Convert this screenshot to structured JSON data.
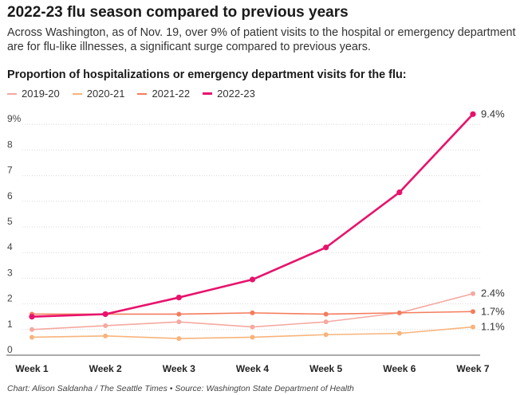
{
  "header": {
    "title": "2022-23 flu season compared to previous years",
    "subtitle": "Across Washington, as of Nov. 19, over 9% of patient visits to the hospital or emergency department are for flu-like illnesses, a significant surge compared to previous years."
  },
  "footer": {
    "credit": "Chart: Alison Saldanha / The Seattle Times • Source: Washington State Department of Health"
  },
  "chart_data": {
    "type": "line",
    "title": "Proportion of hospitalizations or emergency department visits for the flu:",
    "categories": [
      "Week 1",
      "Week 2",
      "Week 3",
      "Week 4",
      "Week 5",
      "Week 6",
      "Week 7"
    ],
    "ylim": [
      0,
      9.5
    ],
    "yticks": [
      0,
      1,
      2,
      3,
      4,
      5,
      6,
      7,
      8,
      9
    ],
    "ytick_labels": [
      "0",
      "1",
      "2",
      "3",
      "4",
      "5",
      "6",
      "7",
      "8",
      "9%"
    ],
    "grid": true,
    "xlabel": "",
    "ylabel": "",
    "series": [
      {
        "name": "2019-20",
        "color": "#f4a9a0",
        "values": [
          1.0,
          1.15,
          1.3,
          1.1,
          1.3,
          1.65,
          2.4
        ],
        "end_label": "2.4%"
      },
      {
        "name": "2020-21",
        "color": "#f7b47c",
        "values": [
          0.7,
          0.75,
          0.65,
          0.7,
          0.8,
          0.85,
          1.1
        ],
        "end_label": "1.1%"
      },
      {
        "name": "2021-22",
        "color": "#f47c5c",
        "values": [
          1.6,
          1.6,
          1.6,
          1.65,
          1.6,
          1.65,
          1.7
        ],
        "end_label": "1.7%"
      },
      {
        "name": "2022-23",
        "color": "#e8126c",
        "values": [
          1.5,
          1.6,
          2.25,
          2.95,
          4.2,
          6.35,
          9.4
        ],
        "end_label": "9.4%"
      }
    ]
  }
}
